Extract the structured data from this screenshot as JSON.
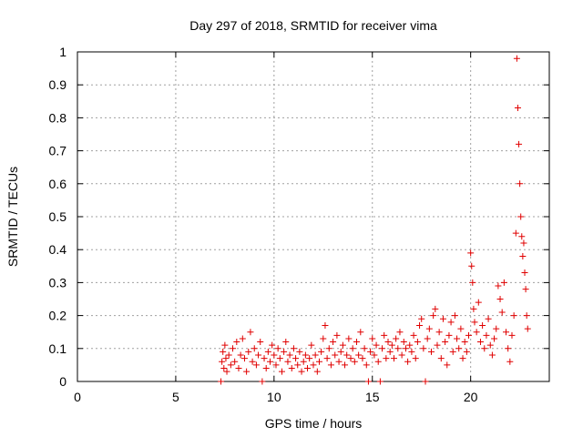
{
  "chart_data": {
    "type": "scatter",
    "title": "Day 297 of 2018, SRMTID for receiver vima",
    "xlabel": "GPS time / hours",
    "ylabel": "SRMTID / TECUs",
    "xlim": [
      0,
      24
    ],
    "ylim": [
      0,
      1
    ],
    "xticks": [
      0,
      5,
      10,
      15,
      20
    ],
    "yticks": [
      0,
      0.1,
      0.2,
      0.3,
      0.4,
      0.5,
      0.6,
      0.7,
      0.8,
      0.9,
      1
    ],
    "grid": true,
    "marker": "plus",
    "color": "#e00000",
    "series": [
      {
        "name": "SRMTID",
        "points": [
          [
            7.3,
            0.0
          ],
          [
            7.35,
            0.06
          ],
          [
            7.4,
            0.09
          ],
          [
            7.45,
            0.04
          ],
          [
            7.5,
            0.11
          ],
          [
            7.55,
            0.07
          ],
          [
            7.6,
            0.03
          ],
          [
            7.7,
            0.08
          ],
          [
            7.8,
            0.05
          ],
          [
            7.9,
            0.1
          ],
          [
            8.0,
            0.06
          ],
          [
            8.1,
            0.12
          ],
          [
            8.2,
            0.04
          ],
          [
            8.3,
            0.08
          ],
          [
            8.4,
            0.13
          ],
          [
            8.5,
            0.07
          ],
          [
            8.6,
            0.03
          ],
          [
            8.7,
            0.09
          ],
          [
            8.8,
            0.15
          ],
          [
            8.9,
            0.06
          ],
          [
            9.0,
            0.1
          ],
          [
            9.1,
            0.05
          ],
          [
            9.2,
            0.08
          ],
          [
            9.3,
            0.12
          ],
          [
            9.4,
            0.0
          ],
          [
            9.5,
            0.07
          ],
          [
            9.6,
            0.04
          ],
          [
            9.7,
            0.09
          ],
          [
            9.8,
            0.06
          ],
          [
            9.9,
            0.11
          ],
          [
            10.0,
            0.08
          ],
          [
            10.1,
            0.05
          ],
          [
            10.2,
            0.1
          ],
          [
            10.3,
            0.07
          ],
          [
            10.4,
            0.03
          ],
          [
            10.5,
            0.09
          ],
          [
            10.6,
            0.12
          ],
          [
            10.7,
            0.06
          ],
          [
            10.8,
            0.08
          ],
          [
            10.9,
            0.04
          ],
          [
            11.0,
            0.1
          ],
          [
            11.1,
            0.07
          ],
          [
            11.2,
            0.05
          ],
          [
            11.3,
            0.09
          ],
          [
            11.4,
            0.03
          ],
          [
            11.5,
            0.06
          ],
          [
            11.6,
            0.08
          ],
          [
            11.7,
            0.04
          ],
          [
            11.8,
            0.07
          ],
          [
            11.9,
            0.11
          ],
          [
            12.0,
            0.05
          ],
          [
            12.1,
            0.08
          ],
          [
            12.2,
            0.03
          ],
          [
            12.3,
            0.06
          ],
          [
            12.4,
            0.09
          ],
          [
            12.5,
            0.13
          ],
          [
            12.6,
            0.17
          ],
          [
            12.7,
            0.07
          ],
          [
            12.8,
            0.1
          ],
          [
            12.9,
            0.05
          ],
          [
            13.0,
            0.12
          ],
          [
            13.1,
            0.08
          ],
          [
            13.2,
            0.14
          ],
          [
            13.3,
            0.06
          ],
          [
            13.4,
            0.09
          ],
          [
            13.5,
            0.11
          ],
          [
            13.6,
            0.05
          ],
          [
            13.7,
            0.08
          ],
          [
            13.8,
            0.13
          ],
          [
            13.9,
            0.07
          ],
          [
            14.0,
            0.1
          ],
          [
            14.1,
            0.06
          ],
          [
            14.2,
            0.12
          ],
          [
            14.3,
            0.08
          ],
          [
            14.4,
            0.15
          ],
          [
            14.5,
            0.07
          ],
          [
            14.6,
            0.1
          ],
          [
            14.7,
            0.05
          ],
          [
            14.8,
            0.0
          ],
          [
            14.9,
            0.09
          ],
          [
            15.0,
            0.13
          ],
          [
            15.1,
            0.08
          ],
          [
            15.2,
            0.11
          ],
          [
            15.3,
            0.06
          ],
          [
            15.4,
            0.0
          ],
          [
            15.5,
            0.1
          ],
          [
            15.6,
            0.14
          ],
          [
            15.7,
            0.07
          ],
          [
            15.8,
            0.12
          ],
          [
            15.9,
            0.09
          ],
          [
            16.0,
            0.11
          ],
          [
            16.1,
            0.07
          ],
          [
            16.2,
            0.13
          ],
          [
            16.3,
            0.1
          ],
          [
            16.4,
            0.15
          ],
          [
            16.5,
            0.08
          ],
          [
            16.6,
            0.12
          ],
          [
            16.7,
            0.1
          ],
          [
            16.8,
            0.06
          ],
          [
            16.9,
            0.11
          ],
          [
            17.0,
            0.09
          ],
          [
            17.1,
            0.14
          ],
          [
            17.2,
            0.07
          ],
          [
            17.3,
            0.12
          ],
          [
            17.4,
            0.17
          ],
          [
            17.5,
            0.19
          ],
          [
            17.6,
            0.1
          ],
          [
            17.7,
            0.0
          ],
          [
            17.8,
            0.13
          ],
          [
            17.9,
            0.16
          ],
          [
            18.0,
            0.09
          ],
          [
            18.1,
            0.2
          ],
          [
            18.2,
            0.22
          ],
          [
            18.3,
            0.11
          ],
          [
            18.4,
            0.15
          ],
          [
            18.5,
            0.07
          ],
          [
            18.6,
            0.19
          ],
          [
            18.7,
            0.12
          ],
          [
            18.8,
            0.05
          ],
          [
            18.9,
            0.14
          ],
          [
            19.0,
            0.18
          ],
          [
            19.1,
            0.09
          ],
          [
            19.2,
            0.2
          ],
          [
            19.3,
            0.13
          ],
          [
            19.4,
            0.1
          ],
          [
            19.5,
            0.16
          ],
          [
            19.6,
            0.07
          ],
          [
            19.7,
            0.12
          ],
          [
            19.8,
            0.09
          ],
          [
            19.9,
            0.14
          ],
          [
            20.0,
            0.39
          ],
          [
            20.05,
            0.35
          ],
          [
            20.1,
            0.3
          ],
          [
            20.15,
            0.22
          ],
          [
            20.2,
            0.18
          ],
          [
            20.3,
            0.15
          ],
          [
            20.4,
            0.24
          ],
          [
            20.5,
            0.12
          ],
          [
            20.6,
            0.17
          ],
          [
            20.7,
            0.1
          ],
          [
            20.8,
            0.14
          ],
          [
            20.9,
            0.19
          ],
          [
            21.0,
            0.11
          ],
          [
            21.1,
            0.08
          ],
          [
            21.2,
            0.13
          ],
          [
            21.3,
            0.16
          ],
          [
            21.4,
            0.29
          ],
          [
            21.5,
            0.25
          ],
          [
            21.6,
            0.21
          ],
          [
            21.7,
            0.3
          ],
          [
            21.8,
            0.15
          ],
          [
            21.9,
            0.1
          ],
          [
            22.0,
            0.06
          ],
          [
            22.1,
            0.14
          ],
          [
            22.2,
            0.2
          ],
          [
            22.3,
            0.45
          ],
          [
            22.35,
            0.98
          ],
          [
            22.4,
            0.83
          ],
          [
            22.45,
            0.72
          ],
          [
            22.5,
            0.6
          ],
          [
            22.55,
            0.5
          ],
          [
            22.6,
            0.44
          ],
          [
            22.65,
            0.38
          ],
          [
            22.7,
            0.42
          ],
          [
            22.75,
            0.33
          ],
          [
            22.8,
            0.28
          ],
          [
            22.85,
            0.2
          ],
          [
            22.9,
            0.16
          ]
        ]
      }
    ]
  }
}
